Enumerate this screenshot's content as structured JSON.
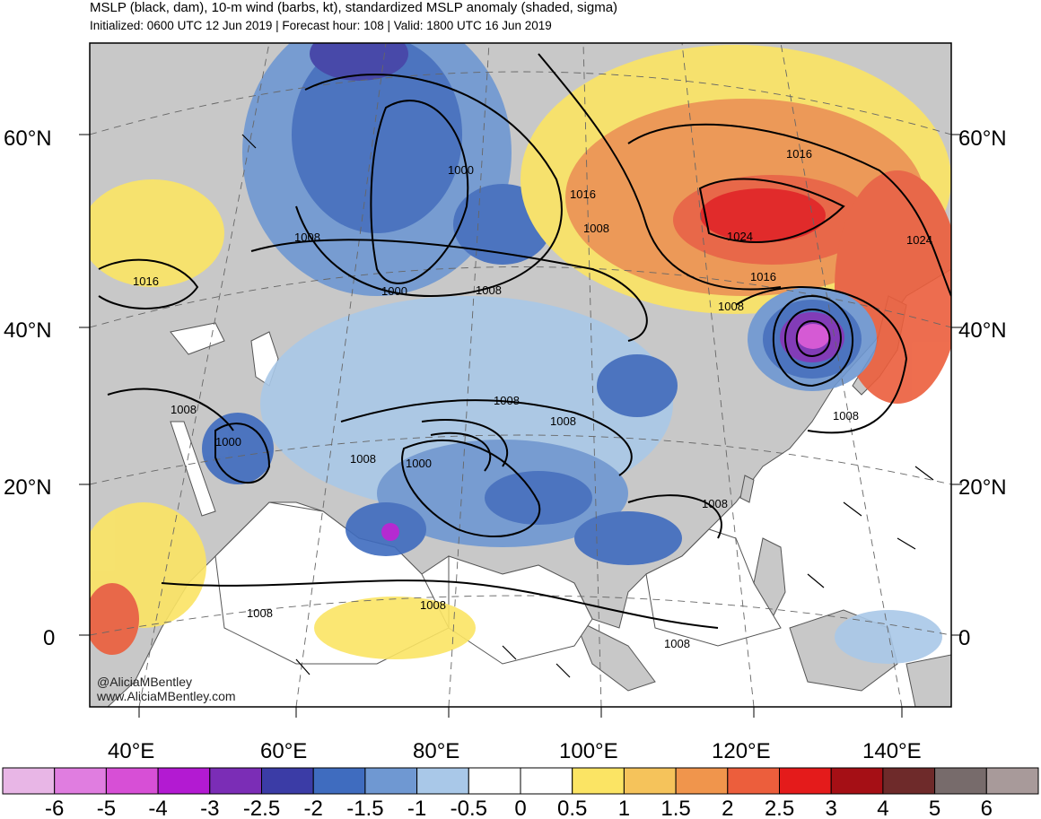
{
  "header": {
    "title": "MSLP (black, dam), 10-m wind (barbs, kt), standardized MSLP anomaly (shaded, sigma)",
    "subtitle": "Initialized: 0600 UTC 12 Jun 2019 | Forecast hour: 108 | Valid: 1800 UTC 16 Jun 2019"
  },
  "map": {
    "region": "Asia",
    "projection": "polar-stereographic (curved graticule)",
    "lat_labels_left": [
      "60°N",
      "40°N",
      "20°N",
      "0"
    ],
    "lat_labels_right": [
      "60°N",
      "40°N",
      "20°N",
      "0"
    ],
    "lon_labels": [
      "40°E",
      "60°E",
      "80°E",
      "100°E",
      "120°E",
      "140°E"
    ],
    "credit_lines": [
      "@AliciaMBentley",
      "www.AliciaMBentley.com"
    ],
    "contour_labels": [
      "1016",
      "1008",
      "1000",
      "1008",
      "1008",
      "1016",
      "1016",
      "1024",
      "1016",
      "1008",
      "1024",
      "1008",
      "1000",
      "1008",
      "1000",
      "1008",
      "1008",
      "1008",
      "1000",
      "1008",
      "1008",
      "1008",
      "1008"
    ],
    "colors": {
      "land": "#c8c8c8",
      "ocean": "#ffffff",
      "coastline": "#555555",
      "contour": "#000000"
    }
  },
  "colorbar": {
    "labels": [
      "-6",
      "-5",
      "-4",
      "-3",
      "-2.5",
      "-2",
      "-1.5",
      "-1",
      "-0.5",
      "0",
      "0.5",
      "1",
      "1.5",
      "2",
      "2.5",
      "3",
      "4",
      "5",
      "6"
    ],
    "colors": [
      "#e8b6e6",
      "#e07de0",
      "#d74fd6",
      "#b31ad2",
      "#7b2db6",
      "#3b3ca6",
      "#3f6cbf",
      "#6f98d2",
      "#a9c8e8",
      "#ffffff",
      "#ffffff",
      "#fbe464",
      "#f5c35b",
      "#f0954c",
      "#ec5e3c",
      "#e41b1b",
      "#a50f15",
      "#6e2a2a",
      "#776b6b",
      "#a89a9a"
    ]
  }
}
